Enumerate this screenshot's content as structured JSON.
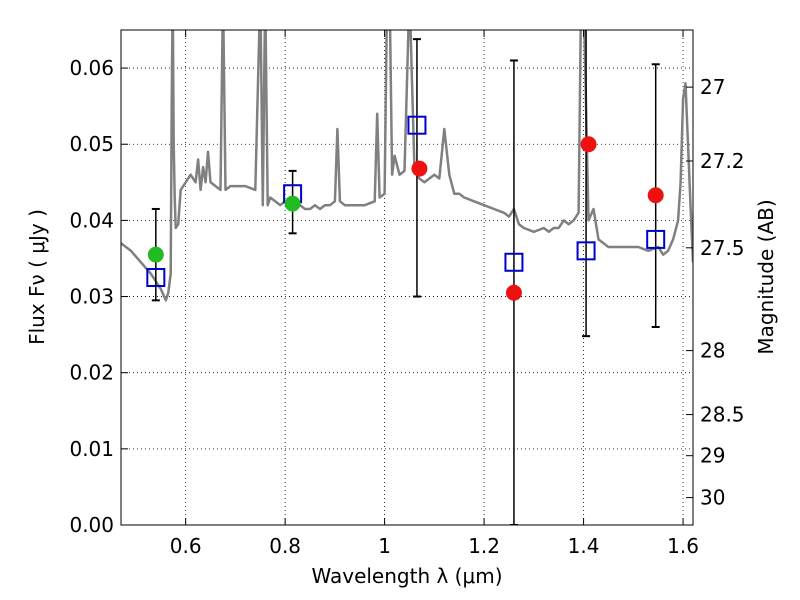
{
  "chart_data": {
    "type": "scatter",
    "title": "",
    "xlabel": "Wavelength  λ (μm)",
    "ylabel": "Flux  Fν  ( μJy )",
    "y2label": "Magnitude (AB)",
    "xlim": [
      0.47,
      1.62
    ],
    "ylim": [
      0.0,
      0.065
    ],
    "grid": true,
    "x_ticks": [
      0.6,
      0.8,
      1.0,
      1.2,
      1.4,
      1.6
    ],
    "x_tick_labels": [
      "0.6",
      "0.8",
      "1",
      "1.2",
      "1.4",
      "1.6"
    ],
    "y_ticks": [
      0.0,
      0.01,
      0.02,
      0.03,
      0.04,
      0.05,
      0.06
    ],
    "y_tick_labels": [
      "0.00",
      "0.01",
      "0.02",
      "0.03",
      "0.04",
      "0.05",
      "0.06"
    ],
    "y2_ticks": [
      {
        "label": "27",
        "flux": 0.0575
      },
      {
        "label": "27.2",
        "flux": 0.0478
      },
      {
        "label": "27.5",
        "flux": 0.0364
      },
      {
        "label": "28",
        "flux": 0.0229
      },
      {
        "label": "28.5",
        "flux": 0.0145
      },
      {
        "label": "29",
        "flux": 0.0091
      },
      {
        "label": "30",
        "flux": 0.0036
      }
    ],
    "series": [
      {
        "name": "model spectrum",
        "style": "line",
        "color": "#808080",
        "x": [
          0.47,
          0.49,
          0.51,
          0.53,
          0.55,
          0.56,
          0.565,
          0.57,
          0.572,
          0.574,
          0.576,
          0.578,
          0.58,
          0.585,
          0.59,
          0.6,
          0.61,
          0.62,
          0.625,
          0.63,
          0.635,
          0.64,
          0.645,
          0.65,
          0.66,
          0.67,
          0.675,
          0.68,
          0.69,
          0.7,
          0.72,
          0.74,
          0.75,
          0.755,
          0.76,
          0.765,
          0.77,
          0.78,
          0.79,
          0.8,
          0.81,
          0.82,
          0.83,
          0.84,
          0.85,
          0.86,
          0.87,
          0.88,
          0.89,
          0.9,
          0.905,
          0.91,
          0.92,
          0.94,
          0.96,
          0.98,
          0.985,
          0.99,
          1.0,
          1.005,
          1.01,
          1.015,
          1.02,
          1.03,
          1.04,
          1.05,
          1.06,
          1.07,
          1.08,
          1.09,
          1.1,
          1.11,
          1.12,
          1.13,
          1.14,
          1.15,
          1.16,
          1.18,
          1.2,
          1.22,
          1.24,
          1.25,
          1.26,
          1.27,
          1.28,
          1.3,
          1.32,
          1.33,
          1.34,
          1.35,
          1.36,
          1.37,
          1.38,
          1.39,
          1.395,
          1.4,
          1.41,
          1.42,
          1.43,
          1.45,
          1.47,
          1.49,
          1.51,
          1.53,
          1.55,
          1.56,
          1.57,
          1.58,
          1.59,
          1.595,
          1.6,
          1.605,
          1.61,
          1.615,
          1.62
        ],
        "y": [
          0.037,
          0.036,
          0.0345,
          0.033,
          0.031,
          0.0295,
          0.0305,
          0.033,
          0.055,
          0.07,
          0.05,
          0.043,
          0.039,
          0.0395,
          0.044,
          0.045,
          0.046,
          0.045,
          0.048,
          0.044,
          0.047,
          0.045,
          0.049,
          0.045,
          0.0445,
          0.044,
          0.07,
          0.044,
          0.0445,
          0.0445,
          0.0445,
          0.044,
          0.07,
          0.042,
          0.07,
          0.042,
          0.043,
          0.0425,
          0.042,
          0.0425,
          0.0425,
          0.0425,
          0.042,
          0.0415,
          0.0415,
          0.042,
          0.0415,
          0.042,
          0.042,
          0.0425,
          0.052,
          0.0425,
          0.042,
          0.042,
          0.042,
          0.0425,
          0.054,
          0.043,
          0.0435,
          0.07,
          0.07,
          0.046,
          0.0485,
          0.046,
          0.0465,
          0.07,
          0.0465,
          0.0455,
          0.045,
          0.0455,
          0.046,
          0.0455,
          0.052,
          0.046,
          0.0435,
          0.0435,
          0.043,
          0.0425,
          0.042,
          0.0415,
          0.041,
          0.0405,
          0.0415,
          0.0395,
          0.039,
          0.0385,
          0.039,
          0.0385,
          0.039,
          0.039,
          0.04,
          0.0395,
          0.04,
          0.041,
          0.07,
          0.07,
          0.04,
          0.0415,
          0.0375,
          0.0365,
          0.0365,
          0.0365,
          0.0365,
          0.036,
          0.0365,
          0.0355,
          0.036,
          0.0375,
          0.04,
          0.045,
          0.056,
          0.058,
          0.05,
          0.042,
          0.0345
        ]
      },
      {
        "name": "model bandpass flux (blue squares)",
        "style": "marker",
        "marker": "square-open",
        "color": "#0000cc",
        "x": [
          0.54,
          0.815,
          1.065,
          1.26,
          1.405,
          1.545
        ],
        "y": [
          0.0325,
          0.0435,
          0.0525,
          0.0345,
          0.036,
          0.0375
        ]
      },
      {
        "name": "detections (green)",
        "style": "marker",
        "marker": "circle",
        "color": "#22bb22",
        "x": [
          0.54,
          0.815
        ],
        "y": [
          0.0355,
          0.0422
        ]
      },
      {
        "name": "upper-limit / low S/N points (red)",
        "style": "marker",
        "marker": "circle",
        "color": "#ee1111",
        "x": [
          1.07,
          1.26,
          1.41,
          1.545
        ],
        "y": [
          0.0468,
          0.0305,
          0.05,
          0.0433
        ]
      },
      {
        "name": "error bars",
        "style": "errorbar",
        "color": "#000000",
        "x": [
          0.54,
          0.815,
          1.065,
          1.26,
          1.405,
          1.545
        ],
        "y_low": [
          0.0295,
          0.0383,
          0.03,
          0.0,
          0.0248,
          0.026
        ],
        "y_high": [
          0.0415,
          0.0465,
          0.0638,
          0.061,
          0.066,
          0.0605
        ]
      }
    ]
  }
}
